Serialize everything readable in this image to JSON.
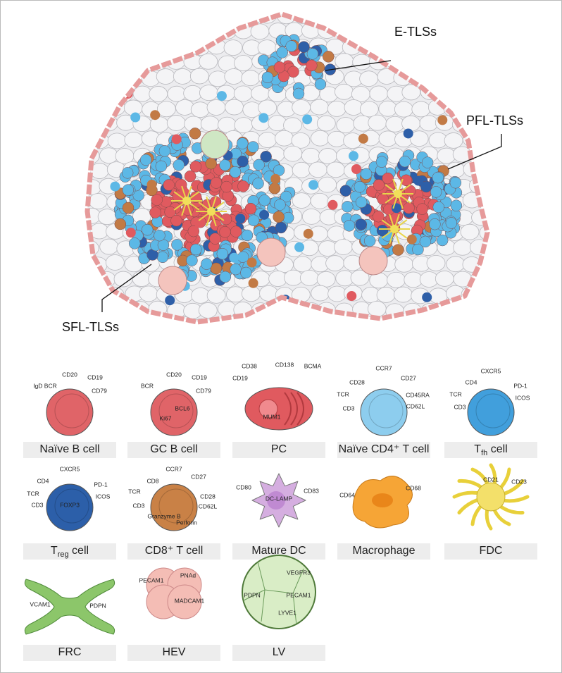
{
  "tissue": {
    "labels": [
      {
        "text": "E-TLSs"
      },
      {
        "text": "PFL-TLSs"
      },
      {
        "text": "SFL-TLSs"
      }
    ]
  },
  "cells": [
    {
      "name": "Naïve B cell",
      "markers": [
        "IgD BCR",
        "CD20",
        "CD19",
        "CD79"
      ]
    },
    {
      "name": "GC B cell",
      "markers": [
        "BCR",
        "CD20",
        "CD19",
        "CD79",
        "BCL6",
        "Ki67"
      ]
    },
    {
      "name": "PC",
      "markers": [
        "CD38",
        "CD138",
        "BCMA",
        "CD19",
        "MUM1"
      ]
    },
    {
      "name": "Naïve CD4⁺ T cell",
      "markers": [
        "CD28",
        "CCR7",
        "CD27",
        "TCR",
        "CD45RA",
        "CD3",
        "CD62L"
      ]
    },
    {
      "name": "T",
      "sub": "fh",
      "suffix": " cell",
      "markers": [
        "CD4",
        "CXCR5",
        "PD-1",
        "TCR",
        "ICOS",
        "CD3"
      ]
    },
    {
      "name": "T",
      "sub": "reg",
      "suffix": " cell",
      "markers": [
        "CD4",
        "CXCR5",
        "PD-1",
        "TCR",
        "ICOS",
        "CD3",
        "FOXP3"
      ]
    },
    {
      "name": "CD8⁺ T cell",
      "markers": [
        "CD8",
        "CCR7",
        "CD27",
        "TCR",
        "CD28",
        "CD3",
        "CD62L",
        "Granzyme B",
        "Perforin"
      ]
    },
    {
      "name": "Mature DC",
      "markers": [
        "CD80",
        "CD83",
        "DC-LAMP"
      ]
    },
    {
      "name": "Macrophage",
      "markers": [
        "CD64",
        "CD68"
      ]
    },
    {
      "name": "FDC",
      "markers": [
        "CD21",
        "CD23"
      ]
    },
    {
      "name": "FRC",
      "markers": [
        "VCAM1",
        "PDPN"
      ]
    },
    {
      "name": "HEV",
      "markers": [
        "PNAd",
        "PECAM1",
        "MADCAM1"
      ]
    },
    {
      "name": "LV",
      "markers": [
        "VEGFR3",
        "PDPN",
        "PECAM1",
        "LYVE1"
      ]
    }
  ]
}
